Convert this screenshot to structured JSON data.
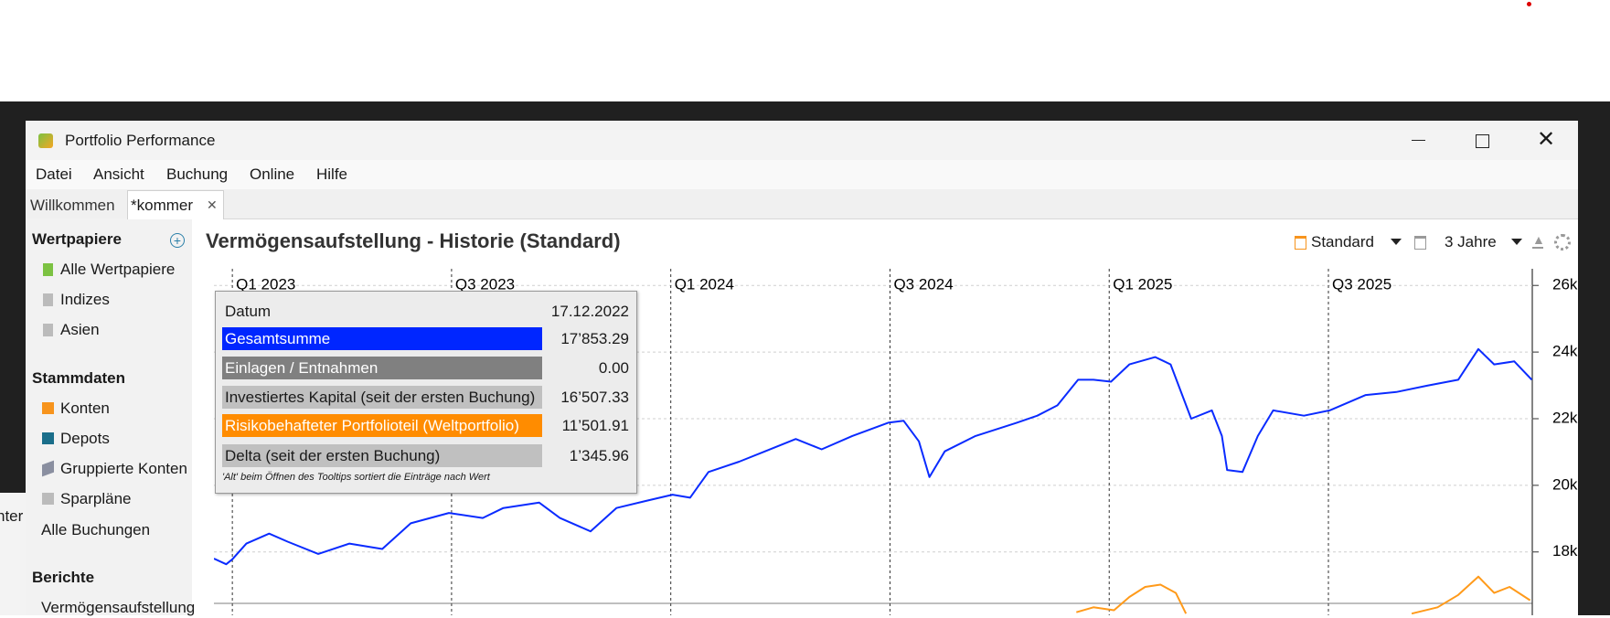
{
  "window": {
    "title": "Portfolio Performance"
  },
  "menu": [
    "Datei",
    "Ansicht",
    "Buchung",
    "Online",
    "Hilfe"
  ],
  "tabs": [
    "Willkommen",
    "*kommer"
  ],
  "background_window": {
    "text": "nter"
  },
  "sidebar": {
    "sections": [
      {
        "title": "Wertpapiere",
        "items": [
          "Alle Wertpapiere",
          "Indizes",
          "Asien"
        ]
      },
      {
        "title": "Stammdaten",
        "items": [
          "Konten",
          "Depots",
          "Gruppierte Konten",
          "Sparpläne",
          "Alle Buchungen"
        ]
      },
      {
        "title": "Berichte",
        "items": [
          "Vermögensaufstellung"
        ]
      }
    ]
  },
  "view": {
    "title": "Vermögensaufstellung - Historie (Standard)",
    "config": "Standard",
    "period": "3 Jahre"
  },
  "tooltip": {
    "rows": [
      {
        "label": "Datum",
        "value": "17.12.2022"
      },
      {
        "label": "Gesamtsumme",
        "value": "17’853.29"
      },
      {
        "label": "Einlagen / Entnahmen",
        "value": "0.00"
      },
      {
        "label": "Investiertes Kapital (seit der ersten Buchung)",
        "value": "16’507.33"
      },
      {
        "label": "Risikobehafteter Portfolioteil (Weltportfolio)",
        "value": "11’501.91"
      },
      {
        "label": "Delta (seit der ersten Buchung)",
        "value": "1’345.96"
      }
    ],
    "note": "'Alt' beim Öffnen des Tooltips sortiert die Einträge nach Wert"
  },
  "chart_data": {
    "type": "line",
    "xlim": [
      2022.958,
      2025.965
    ],
    "xticks": [
      {
        "value": 2023.0,
        "label": "Q1 2023"
      },
      {
        "value": 2023.5,
        "label": "Q3 2023"
      },
      {
        "value": 2024.0,
        "label": "Q1 2024"
      },
      {
        "value": 2024.5,
        "label": "Q3 2024"
      },
      {
        "value": 2025.0,
        "label": "Q1 2025"
      },
      {
        "value": 2025.5,
        "label": "Q3 2025"
      }
    ],
    "ylim": [
      16100,
      26500
    ],
    "yticks": [
      {
        "value": 18000,
        "label": "18k"
      },
      {
        "value": 20000,
        "label": "20k"
      },
      {
        "value": 22000,
        "label": "22k"
      },
      {
        "value": 24000,
        "label": "24k"
      },
      {
        "value": 26000,
        "label": "26k"
      }
    ],
    "grid": true,
    "series": [
      {
        "color": "#0a2bff",
        "x": [
          2022.958,
          2022.986,
          2023.0,
          2023.032,
          2023.084,
          2023.126,
          2023.196,
          2023.267,
          2023.342,
          2023.407,
          2023.494,
          2023.571,
          2023.618,
          2023.7,
          2023.747,
          2023.817,
          2023.876,
          2023.946,
          2024.004,
          2024.044,
          2024.086,
          2024.156,
          2024.215,
          2024.285,
          2024.344,
          2024.414,
          2024.496,
          2024.531,
          2024.566,
          2024.59,
          2024.625,
          2024.695,
          2024.789,
          2024.836,
          2024.882,
          2024.929,
          2024.964,
          2025.004,
          2025.046,
          2025.105,
          2025.14,
          2025.187,
          2025.234,
          2025.257,
          2025.269,
          2025.304,
          2025.339,
          2025.374,
          2025.444,
          2025.503,
          2025.585,
          2025.655,
          2025.725,
          2025.796,
          2025.842,
          2025.878,
          2025.924,
          2025.964
        ],
        "values": [
          17800,
          17630,
          17780,
          18250,
          18550,
          18310,
          17940,
          18250,
          18090,
          18860,
          19170,
          19020,
          19320,
          19480,
          19020,
          18620,
          19320,
          19540,
          19720,
          19630,
          20400,
          20710,
          21020,
          21390,
          21080,
          21480,
          21880,
          21940,
          21320,
          20250,
          21020,
          21480,
          21880,
          22090,
          22400,
          23170,
          23170,
          23110,
          23630,
          23850,
          23630,
          22000,
          22250,
          21480,
          20460,
          20400,
          21480,
          22250,
          22090,
          22250,
          22710,
          22800,
          22990,
          23170,
          24090,
          23630,
          23720,
          23170
        ]
      },
      {
        "color": "#ff9a1a",
        "x": [
          2024.925,
          2024.964,
          2025.011,
          2025.046,
          2025.082,
          2025.117,
          2025.152,
          2025.175,
          null,
          2025.69,
          2025.749,
          2025.796,
          2025.842,
          2025.878,
          2025.913,
          2025.96
        ],
        "values": [
          16190,
          16340,
          16250,
          16650,
          16950,
          17020,
          16770,
          16150,
          null,
          16150,
          16340,
          16710,
          17260,
          16770,
          16950,
          16550
        ]
      }
    ]
  }
}
